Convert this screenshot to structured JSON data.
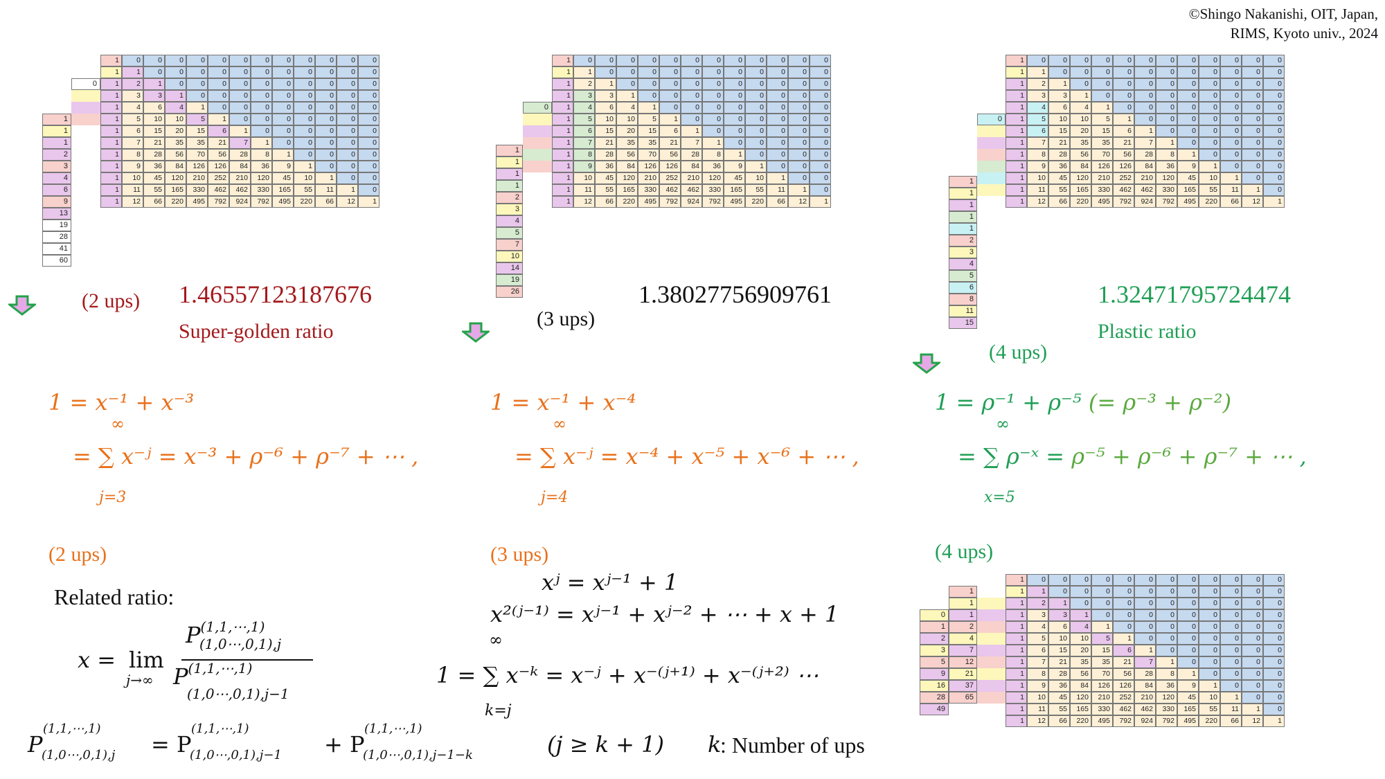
{
  "copyright": [
    "©Shingo Nakanishi, OIT, Japan,",
    "RIMS, Kyoto univ., 2024"
  ],
  "pascal_rows": [
    [
      "1",
      "0",
      "0",
      "0",
      "0",
      "0",
      "0",
      "0",
      "0",
      "0",
      "0",
      "0",
      "0"
    ],
    [
      "1",
      "1",
      "0",
      "0",
      "0",
      "0",
      "0",
      "0",
      "0",
      "0",
      "0",
      "0",
      "0"
    ],
    [
      "1",
      "2",
      "1",
      "0",
      "0",
      "0",
      "0",
      "0",
      "0",
      "0",
      "0",
      "0",
      "0"
    ],
    [
      "1",
      "3",
      "3",
      "1",
      "0",
      "0",
      "0",
      "0",
      "0",
      "0",
      "0",
      "0",
      "0"
    ],
    [
      "1",
      "4",
      "6",
      "4",
      "1",
      "0",
      "0",
      "0",
      "0",
      "0",
      "0",
      "0",
      "0"
    ],
    [
      "1",
      "5",
      "10",
      "10",
      "5",
      "1",
      "0",
      "0",
      "0",
      "0",
      "0",
      "0",
      "0"
    ],
    [
      "1",
      "6",
      "15",
      "20",
      "15",
      "6",
      "1",
      "0",
      "0",
      "0",
      "0",
      "0",
      "0"
    ],
    [
      "1",
      "7",
      "21",
      "35",
      "35",
      "21",
      "7",
      "1",
      "0",
      "0",
      "0",
      "0",
      "0"
    ],
    [
      "1",
      "8",
      "28",
      "56",
      "70",
      "56",
      "28",
      "8",
      "1",
      "0",
      "0",
      "0",
      "0"
    ],
    [
      "1",
      "9",
      "36",
      "84",
      "126",
      "126",
      "84",
      "36",
      "9",
      "1",
      "0",
      "0",
      "0"
    ],
    [
      "1",
      "10",
      "45",
      "120",
      "210",
      "252",
      "210",
      "120",
      "45",
      "10",
      "1",
      "0",
      "0"
    ],
    [
      "1",
      "11",
      "55",
      "165",
      "330",
      "462",
      "462",
      "330",
      "165",
      "55",
      "11",
      "1",
      "0"
    ],
    [
      "1",
      "12",
      "66",
      "220",
      "495",
      "792",
      "924",
      "792",
      "495",
      "220",
      "66",
      "12",
      "1"
    ]
  ],
  "panels": {
    "p2": {
      "lead": [
        "0"
      ],
      "sums": [
        "1",
        "1",
        "1",
        "2",
        "3",
        "4",
        "6",
        "9",
        "13",
        "19",
        "28",
        "41",
        "60"
      ],
      "ratio": "1.46557123187676",
      "name": "Super-golden ratio",
      "ups": "(2 ups)"
    },
    "p3": {
      "lead": [
        "0"
      ],
      "sums": [
        "1",
        "1",
        "1",
        "1",
        "2",
        "3",
        "4",
        "5",
        "7",
        "10",
        "14",
        "19",
        "26"
      ],
      "ratio": "1.38027756909761",
      "ups": "(3 ups)"
    },
    "p4": {
      "lead": [
        "0"
      ],
      "sums": [
        "1",
        "1",
        "1",
        "1",
        "1",
        "2",
        "3",
        "4",
        "5",
        "6",
        "8",
        "11",
        "15"
      ],
      "ratio": "1.32471795724474",
      "name": "Plastic ratio",
      "ups": "(4 ups)"
    }
  },
  "bottom_table": {
    "left_col": [
      "0",
      "1",
      "2",
      "3",
      "5",
      "9",
      "16",
      "28",
      "49"
    ],
    "right_col": [
      "1",
      "1",
      "1",
      "2",
      "4",
      "7",
      "12",
      "21",
      "37",
      "65"
    ]
  },
  "equations": {
    "e2_line1": "1 = x⁻¹ + x⁻³",
    "e2_line2": "= ∑ x⁻ʲ = x⁻³ + ρ⁻⁶ + ρ⁻⁷ + ⋯ ,",
    "e2_lower": "j=3",
    "e3_line1": "1 = x⁻¹ + x⁻⁴",
    "e3_line2": "= ∑ x⁻ʲ = x⁻⁴ + x⁻⁵ + x⁻⁶ + ⋯ ,",
    "e3_lower": "j=4",
    "e4_line1a": "1 = ρ⁻¹ + ρ⁻⁵ ",
    "e4_line1b": "(= ρ⁻³ + ρ⁻²)",
    "e4_line2a": "= ∑ ρ⁻ˣ = ",
    "e4_line2b": "ρ⁻⁵ + ρ⁻⁶ + ρ⁻⁷ + ⋯",
    "e4_line2c": " ,",
    "e4_lower": "x=5",
    "infinity": "∞"
  },
  "bottom": {
    "ups2": "(2 ups)",
    "ups3": "(3 ups)",
    "ups4": "(4 ups)",
    "related": "Related ratio:",
    "x_eq": "x =",
    "lim": "lim",
    "lim_sub": "j→∞",
    "frac_num": "P",
    "frac_num_sup": "(1,1,⋯,1)",
    "frac_num_sub": "(1,0⋯,0,1),j",
    "frac_den": "P",
    "frac_den_sup": "(1,1,⋯,1)",
    "frac_den_sub": "(1,0⋯,0,1),j−1",
    "rec_sup": "(1,1,⋯,1)",
    "rec_sub0": "(1,0⋯,0,1),j",
    "rec_sub1": "(1,0⋯,0,1),j−1",
    "rec_sub2": "(1,0⋯,0,1),j−1−k",
    "cond": "(j ≥ k + 1)",
    "k_label": "k",
    "k_text": " : Number of ups",
    "mid1": "xʲ = xʲ⁻¹ + 1",
    "mid2": "x²⁽ʲ⁻¹⁾ = xʲ⁻¹ + xʲ⁻² + ⋯ + x + 1",
    "mid3": "1 = ∑ x⁻ᵏ = x⁻ʲ + x⁻⁽ʲ⁺¹⁾ + x⁻⁽ʲ⁺²⁾ ⋯",
    "mid3_lower": "k=j"
  }
}
